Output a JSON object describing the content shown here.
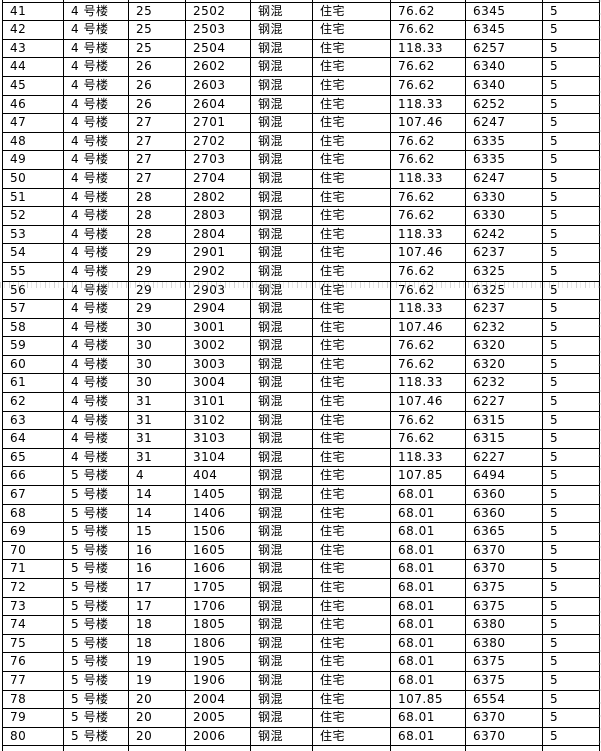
{
  "table": {
    "description_labels": {
      "building_4": "4 号楼",
      "building_5": "5 号楼",
      "structure": "钢混",
      "usage": "住宅"
    },
    "rows": [
      [
        "41",
        "4 号楼",
        "25",
        "2502",
        "钢混",
        "住宅",
        "76.62",
        "6345",
        "5"
      ],
      [
        "42",
        "4 号楼",
        "25",
        "2503",
        "钢混",
        "住宅",
        "76.62",
        "6345",
        "5"
      ],
      [
        "43",
        "4 号楼",
        "25",
        "2504",
        "钢混",
        "住宅",
        "118.33",
        "6257",
        "5"
      ],
      [
        "44",
        "4 号楼",
        "26",
        "2602",
        "钢混",
        "住宅",
        "76.62",
        "6340",
        "5"
      ],
      [
        "45",
        "4 号楼",
        "26",
        "2603",
        "钢混",
        "住宅",
        "76.62",
        "6340",
        "5"
      ],
      [
        "46",
        "4 号楼",
        "26",
        "2604",
        "钢混",
        "住宅",
        "118.33",
        "6252",
        "5"
      ],
      [
        "47",
        "4 号楼",
        "27",
        "2701",
        "钢混",
        "住宅",
        "107.46",
        "6247",
        "5"
      ],
      [
        "48",
        "4 号楼",
        "27",
        "2702",
        "钢混",
        "住宅",
        "76.62",
        "6335",
        "5"
      ],
      [
        "49",
        "4 号楼",
        "27",
        "2703",
        "钢混",
        "住宅",
        "76.62",
        "6335",
        "5"
      ],
      [
        "50",
        "4 号楼",
        "27",
        "2704",
        "钢混",
        "住宅",
        "118.33",
        "6247",
        "5"
      ],
      [
        "51",
        "4 号楼",
        "28",
        "2802",
        "钢混",
        "住宅",
        "76.62",
        "6330",
        "5"
      ],
      [
        "52",
        "4 号楼",
        "28",
        "2803",
        "钢混",
        "住宅",
        "76.62",
        "6330",
        "5"
      ],
      [
        "53",
        "4 号楼",
        "28",
        "2804",
        "钢混",
        "住宅",
        "118.33",
        "6242",
        "5"
      ],
      [
        "54",
        "4 号楼",
        "29",
        "2901",
        "钢混",
        "住宅",
        "107.46",
        "6237",
        "5"
      ],
      [
        "55",
        "4 号楼",
        "29",
        "2902",
        "钢混",
        "住宅",
        "76.62",
        "6325",
        "5"
      ],
      [
        "56",
        "4 号楼",
        "29",
        "2903",
        "钢混",
        "住宅",
        "76.62",
        "6325",
        "5"
      ],
      [
        "57",
        "4 号楼",
        "29",
        "2904",
        "钢混",
        "住宅",
        "118.33",
        "6237",
        "5"
      ],
      [
        "58",
        "4 号楼",
        "30",
        "3001",
        "钢混",
        "住宅",
        "107.46",
        "6232",
        "5"
      ],
      [
        "59",
        "4 号楼",
        "30",
        "3002",
        "钢混",
        "住宅",
        "76.62",
        "6320",
        "5"
      ],
      [
        "60",
        "4 号楼",
        "30",
        "3003",
        "钢混",
        "住宅",
        "76.62",
        "6320",
        "5"
      ],
      [
        "61",
        "4 号楼",
        "30",
        "3004",
        "钢混",
        "住宅",
        "118.33",
        "6232",
        "5"
      ],
      [
        "62",
        "4 号楼",
        "31",
        "3101",
        "钢混",
        "住宅",
        "107.46",
        "6227",
        "5"
      ],
      [
        "63",
        "4 号楼",
        "31",
        "3102",
        "钢混",
        "住宅",
        "76.62",
        "6315",
        "5"
      ],
      [
        "64",
        "4 号楼",
        "31",
        "3103",
        "钢混",
        "住宅",
        "76.62",
        "6315",
        "5"
      ],
      [
        "65",
        "4 号楼",
        "31",
        "3104",
        "钢混",
        "住宅",
        "118.33",
        "6227",
        "5"
      ],
      [
        "66",
        "5 号楼",
        "4",
        "404",
        "钢混",
        "住宅",
        "107.85",
        "6494",
        "5"
      ],
      [
        "67",
        "5 号楼",
        "14",
        "1405",
        "钢混",
        "住宅",
        "68.01",
        "6360",
        "5"
      ],
      [
        "68",
        "5 号楼",
        "14",
        "1406",
        "钢混",
        "住宅",
        "68.01",
        "6360",
        "5"
      ],
      [
        "69",
        "5 号楼",
        "15",
        "1506",
        "钢混",
        "住宅",
        "68.01",
        "6365",
        "5"
      ],
      [
        "70",
        "5 号楼",
        "16",
        "1605",
        "钢混",
        "住宅",
        "68.01",
        "6370",
        "5"
      ],
      [
        "71",
        "5 号楼",
        "16",
        "1606",
        "钢混",
        "住宅",
        "68.01",
        "6370",
        "5"
      ],
      [
        "72",
        "5 号楼",
        "17",
        "1705",
        "钢混",
        "住宅",
        "68.01",
        "6375",
        "5"
      ],
      [
        "73",
        "5 号楼",
        "17",
        "1706",
        "钢混",
        "住宅",
        "68.01",
        "6375",
        "5"
      ],
      [
        "74",
        "5 号楼",
        "18",
        "1805",
        "钢混",
        "住宅",
        "68.01",
        "6380",
        "5"
      ],
      [
        "75",
        "5 号楼",
        "18",
        "1806",
        "钢混",
        "住宅",
        "68.01",
        "6380",
        "5"
      ],
      [
        "76",
        "5 号楼",
        "19",
        "1905",
        "钢混",
        "住宅",
        "68.01",
        "6375",
        "5"
      ],
      [
        "77",
        "5 号楼",
        "19",
        "1906",
        "钢混",
        "住宅",
        "68.01",
        "6375",
        "5"
      ],
      [
        "78",
        "5 号楼",
        "20",
        "2004",
        "钢混",
        "住宅",
        "107.85",
        "6554",
        "5"
      ],
      [
        "79",
        "5 号楼",
        "20",
        "2005",
        "钢混",
        "住宅",
        "68.01",
        "6370",
        "5"
      ],
      [
        "80",
        "5 号楼",
        "20",
        "2006",
        "钢混",
        "住宅",
        "68.01",
        "6370",
        "5"
      ]
    ]
  }
}
